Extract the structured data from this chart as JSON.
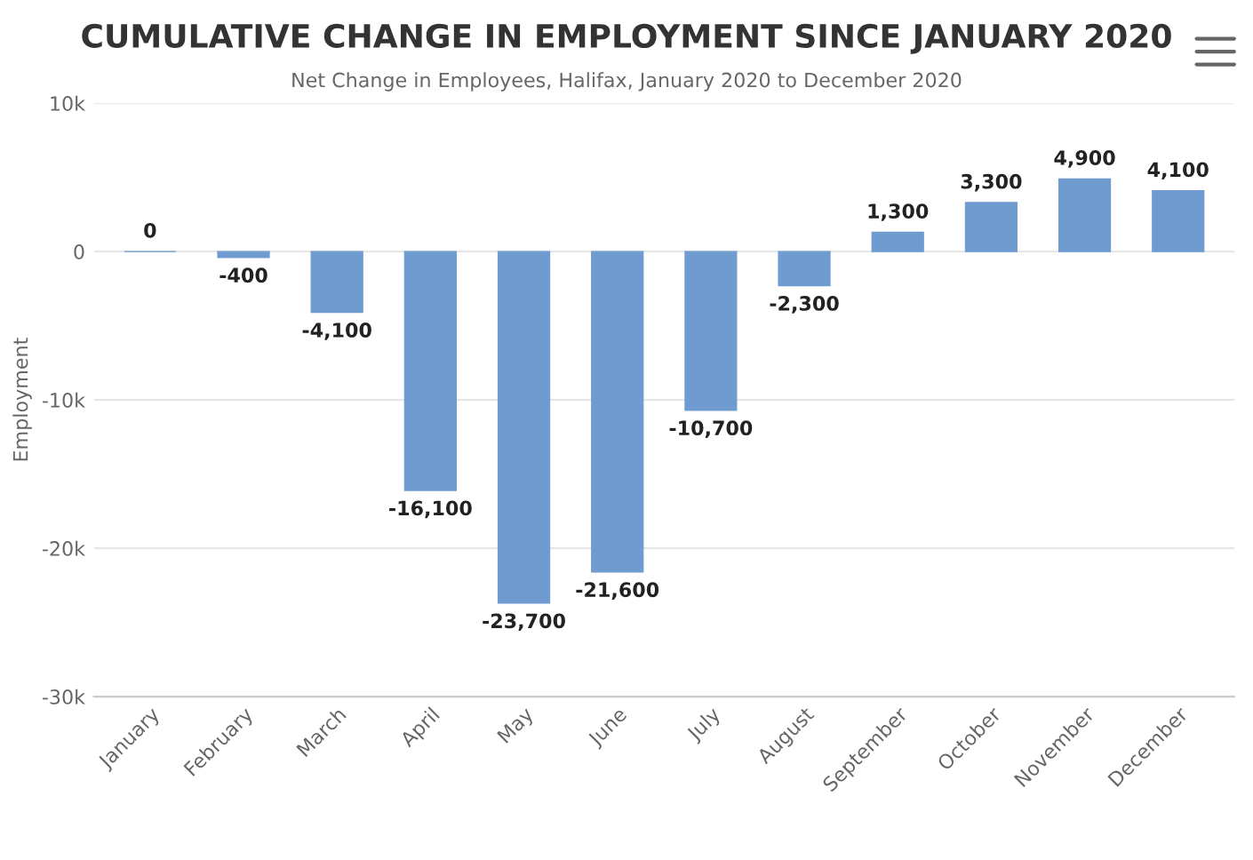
{
  "chart_data": {
    "type": "bar",
    "title": "CUMULATIVE CHANGE IN EMPLOYMENT SINCE JANUARY 2020",
    "subtitle": "Net Change in Employees, Halifax, January 2020 to December 2020",
    "ylabel": "Employment",
    "categories": [
      "January",
      "February",
      "March",
      "April",
      "May",
      "June",
      "July",
      "August",
      "September",
      "October",
      "November",
      "December"
    ],
    "values": [
      0,
      -400,
      -4100,
      -16100,
      -23700,
      -21600,
      -10700,
      -2300,
      1300,
      3300,
      4900,
      4100
    ],
    "value_labels": [
      "0",
      "-400",
      "-4,100",
      "-16,100",
      "-23,700",
      "-21,600",
      "-10,700",
      "-2,300",
      "1,300",
      "3,300",
      "4,900",
      "4,100"
    ],
    "color": "#6f9bd1",
    "ylim": [
      -30000,
      10000
    ],
    "yticks": [
      {
        "value": -30000,
        "label": "-30k"
      },
      {
        "value": -20000,
        "label": "-20k"
      },
      {
        "value": -10000,
        "label": "-10k"
      },
      0,
      {
        "value": 10000,
        "label": "10k"
      }
    ],
    "grid": "y"
  }
}
